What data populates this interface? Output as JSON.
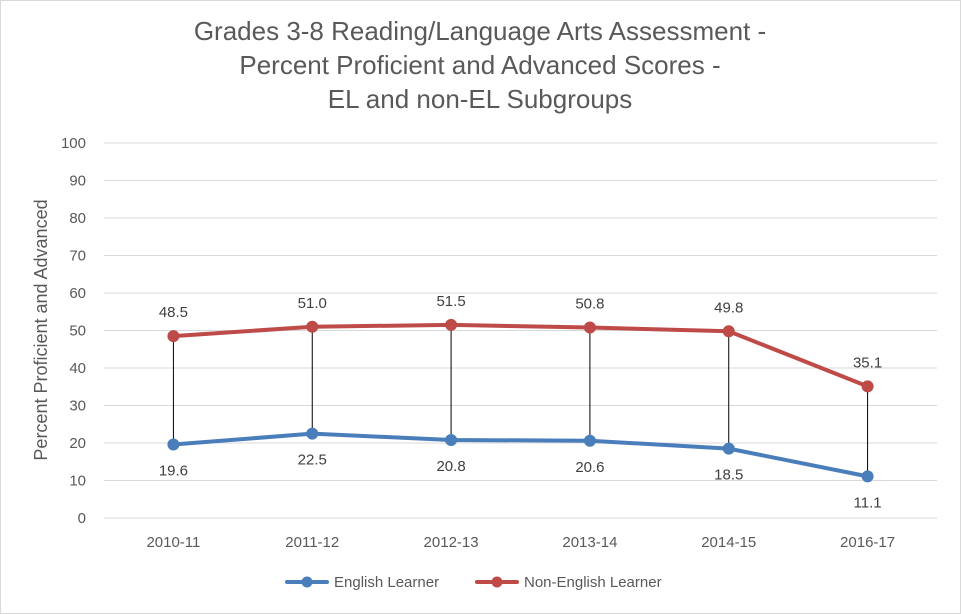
{
  "chart_data": {
    "type": "line",
    "title_lines": [
      "Grades 3-8 Reading/Language Arts Assessment -",
      "Percent Proficient and Advanced Scores -",
      "EL and non-EL Subgroups"
    ],
    "xlabel": "",
    "ylabel": "Percent Proficient and Advanced",
    "ylim": [
      0,
      100
    ],
    "y_ticks": [
      "0",
      "10",
      "20",
      "30",
      "40",
      "50",
      "60",
      "70",
      "80",
      "90",
      "100"
    ],
    "categories": [
      "2010-11",
      "2011-12",
      "2012-13",
      "2013-14",
      "2014-15",
      "2016-17"
    ],
    "series": [
      {
        "name": "English Learner",
        "color": "#4a7ebb",
        "values": [
          19.6,
          22.5,
          20.8,
          20.6,
          18.5,
          11.1
        ],
        "labels": [
          "19.6",
          "22.5",
          "20.8",
          "20.6",
          "18.5",
          "11.1"
        ],
        "label_position": "below"
      },
      {
        "name": "Non-English Learner",
        "color": "#be4b48",
        "values": [
          48.5,
          51.0,
          51.5,
          50.8,
          49.8,
          35.1
        ],
        "labels": [
          "48.5",
          "51.0",
          "51.5",
          "50.8",
          "49.8",
          "35.1"
        ],
        "label_position": "above"
      }
    ],
    "high_low_lines": true,
    "grid": true,
    "legend_position": "bottom"
  }
}
